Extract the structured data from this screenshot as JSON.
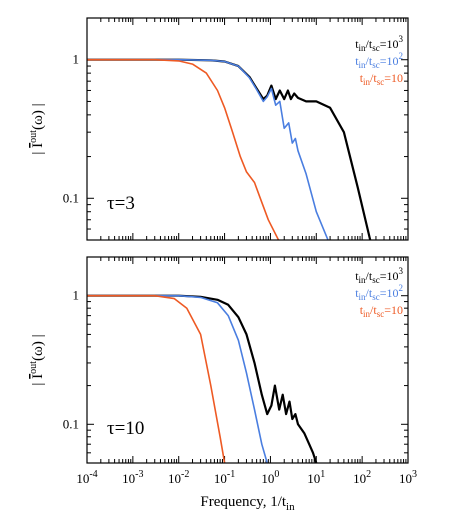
{
  "chart_data": [
    {
      "type": "line",
      "panel_label": "τ=3",
      "xscale": "log",
      "yscale": "log",
      "xlim": [
        0.0001,
        1000
      ],
      "ylim": [
        0.05,
        2.0
      ],
      "xlabel": "",
      "ylabel": "|Ī^out(ω)|",
      "ylabel_parts": {
        "pre": "| ",
        "main": "I",
        "sup": "out",
        "post": "(ω) |"
      },
      "yticks": [
        {
          "v": 1,
          "label": "1"
        },
        {
          "v": 0.1,
          "label": "0.1"
        }
      ],
      "series": [
        {
          "name": "t_in/t_sc=10^3",
          "legend": {
            "a": "t",
            "a_sub": "in",
            "b": "/t",
            "b_sub": "sc",
            "c": "=10",
            "c_sup": "3"
          },
          "color": "#000000",
          "x": [
            0.0001,
            0.01,
            0.05,
            0.1,
            0.2,
            0.35,
            0.5,
            0.7,
            0.85,
            1.05,
            1.3,
            1.6,
            2.0,
            2.4,
            2.8,
            3.3,
            4,
            6,
            10,
            20,
            40,
            80,
            150
          ],
          "y": [
            1.0,
            1.0,
            0.99,
            0.97,
            0.9,
            0.75,
            0.62,
            0.52,
            0.55,
            0.65,
            0.52,
            0.6,
            0.52,
            0.6,
            0.52,
            0.57,
            0.53,
            0.5,
            0.5,
            0.45,
            0.3,
            0.12,
            0.05
          ]
        },
        {
          "name": "t_in/t_sc=10^2",
          "legend": {
            "a": "t",
            "a_sub": "in",
            "b": "/t",
            "b_sub": "sc",
            "c": "=10",
            "c_sup": "2"
          },
          "color": "#4a7ee0",
          "x": [
            0.0001,
            0.01,
            0.05,
            0.1,
            0.2,
            0.35,
            0.5,
            0.7,
            0.85,
            1.05,
            1.3,
            1.6,
            2.0,
            2.5,
            3.0,
            3.5,
            4,
            6,
            10,
            18
          ],
          "y": [
            1.0,
            1.0,
            0.99,
            0.97,
            0.9,
            0.74,
            0.61,
            0.5,
            0.54,
            0.62,
            0.47,
            0.5,
            0.32,
            0.35,
            0.25,
            0.27,
            0.22,
            0.15,
            0.08,
            0.05
          ]
        },
        {
          "name": "t_in/t_sc=10",
          "legend": {
            "a": "t",
            "a_sub": "in",
            "b": "/t",
            "b_sub": "sc",
            "c": "=10",
            "c_sup": ""
          },
          "color": "#ee5a24",
          "x": [
            0.0001,
            0.003,
            0.01,
            0.02,
            0.04,
            0.07,
            0.1,
            0.15,
            0.22,
            0.3,
            0.45,
            0.6,
            0.9,
            1.5
          ],
          "y": [
            1.0,
            1.0,
            0.98,
            0.93,
            0.8,
            0.6,
            0.45,
            0.3,
            0.2,
            0.155,
            0.13,
            0.1,
            0.07,
            0.05
          ]
        }
      ]
    },
    {
      "type": "line",
      "panel_label": "τ=10",
      "xscale": "log",
      "yscale": "log",
      "xlim": [
        0.0001,
        1000
      ],
      "ylim": [
        0.05,
        2.0
      ],
      "xlabel": "Frequency, 1/t_in",
      "xlabel_parts": {
        "main": "Frequency, 1/t",
        "sub": "in"
      },
      "ylabel": "|Ī^out(ω)|",
      "ylabel_parts": {
        "pre": "| ",
        "main": "I",
        "sup": "out",
        "post": "(ω) |"
      },
      "xticks": [
        {
          "v": 0.0001,
          "base": "10",
          "exp": "-4"
        },
        {
          "v": 0.001,
          "base": "10",
          "exp": "-3"
        },
        {
          "v": 0.01,
          "base": "10",
          "exp": "-2"
        },
        {
          "v": 0.1,
          "base": "10",
          "exp": "-1"
        },
        {
          "v": 1,
          "base": "10",
          "exp": "0"
        },
        {
          "v": 10,
          "base": "10",
          "exp": "1"
        },
        {
          "v": 100,
          "base": "10",
          "exp": "2"
        },
        {
          "v": 1000,
          "base": "10",
          "exp": "3"
        }
      ],
      "yticks": [
        {
          "v": 1,
          "label": "1"
        },
        {
          "v": 0.1,
          "label": "0.1"
        }
      ],
      "series": [
        {
          "name": "t_in/t_sc=10^3",
          "legend": {
            "a": "t",
            "a_sub": "in",
            "b": "/t",
            "b_sub": "sc",
            "c": "=10",
            "c_sup": "3"
          },
          "color": "#000000",
          "x": [
            0.0001,
            0.01,
            0.03,
            0.07,
            0.12,
            0.2,
            0.3,
            0.45,
            0.65,
            0.85,
            1.05,
            1.25,
            1.55,
            1.85,
            2.2,
            2.6,
            3.0,
            3.5,
            4.0,
            5.5,
            7.0,
            8.5,
            10
          ],
          "y": [
            1.0,
            1.0,
            0.98,
            0.93,
            0.85,
            0.68,
            0.5,
            0.3,
            0.17,
            0.12,
            0.14,
            0.2,
            0.13,
            0.17,
            0.12,
            0.15,
            0.11,
            0.12,
            0.1,
            0.085,
            0.07,
            0.06,
            0.05
          ]
        },
        {
          "name": "t_in/t_sc=10^2",
          "legend": {
            "a": "t",
            "a_sub": "in",
            "b": "/t",
            "b_sub": "sc",
            "c": "=10",
            "c_sup": "2"
          },
          "color": "#4a7ee0",
          "x": [
            0.0001,
            0.01,
            0.03,
            0.07,
            0.12,
            0.2,
            0.3,
            0.45,
            0.65,
            0.85
          ],
          "y": [
            1.0,
            1.0,
            0.97,
            0.88,
            0.7,
            0.45,
            0.25,
            0.13,
            0.07,
            0.05
          ]
        },
        {
          "name": "t_in/t_sc=10",
          "legend": {
            "a": "t",
            "a_sub": "in",
            "b": "/t",
            "b_sub": "sc",
            "c": "=10",
            "c_sup": ""
          },
          "color": "#ee5a24",
          "x": [
            0.0001,
            0.003,
            0.008,
            0.015,
            0.03,
            0.05,
            0.08,
            0.1
          ],
          "y": [
            1.0,
            1.0,
            0.95,
            0.8,
            0.5,
            0.2,
            0.08,
            0.05
          ]
        }
      ]
    }
  ]
}
